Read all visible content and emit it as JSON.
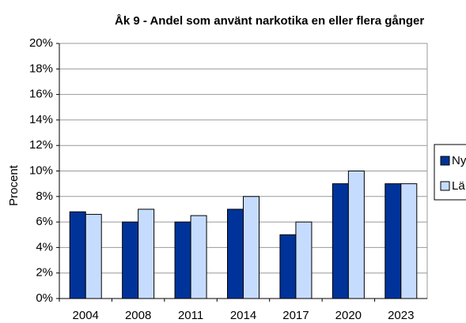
{
  "chart_data": {
    "type": "bar",
    "title": "Åk 9 - Andel som använt narkotika en eller flera gånger",
    "y_label": "Procent",
    "categories": [
      "2004",
      "2008",
      "2011",
      "2014",
      "2017",
      "2020",
      "2023"
    ],
    "series": [
      {
        "name": "Ny",
        "color": "#003399",
        "values": [
          6.8,
          6,
          6,
          7,
          5,
          9,
          9
        ]
      },
      {
        "name": "Lä",
        "color": "#c6dcff",
        "values": [
          6.6,
          7,
          6.5,
          8,
          6,
          10,
          9
        ]
      }
    ],
    "ylim": [
      0,
      20
    ],
    "yticks": [
      {
        "value": 0,
        "label": "0%"
      },
      {
        "value": 2,
        "label": "2%"
      },
      {
        "value": 4,
        "label": "4%"
      },
      {
        "value": 6,
        "label": "6%"
      },
      {
        "value": 8,
        "label": "8%"
      },
      {
        "value": 10,
        "label": "10%"
      },
      {
        "value": 12,
        "label": "12%"
      },
      {
        "value": 14,
        "label": "14%"
      },
      {
        "value": 16,
        "label": "16%"
      },
      {
        "value": 18,
        "label": "18%"
      },
      {
        "value": 20,
        "label": "20%"
      }
    ],
    "grid": true
  }
}
